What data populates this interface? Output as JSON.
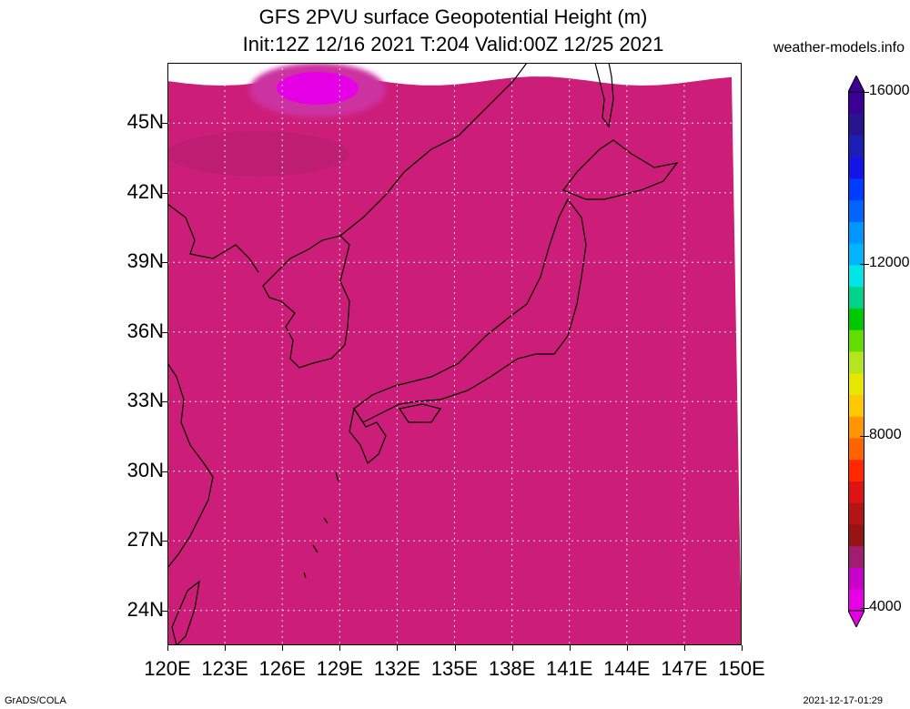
{
  "title_line1": "GFS 2PVU surface Geopotential Height (m)",
  "title_line2": "Init:12Z 12/16 2021 T:204 Valid:00Z 12/25 2021",
  "site": "weather-models.info",
  "footer_left": "GrADS/COLA",
  "footer_right": "2021-12-17-01:29",
  "map": {
    "lon_range": [
      120,
      150
    ],
    "lat_range": [
      22.5,
      47.6
    ],
    "x_labels": [
      "120E",
      "123E",
      "126E",
      "129E",
      "132E",
      "135E",
      "138E",
      "141E",
      "144E",
      "147E",
      "150E"
    ],
    "y_labels": [
      "45N",
      "42N",
      "39N",
      "36N",
      "33N",
      "30N",
      "27N",
      "24N"
    ],
    "band_colors": [
      "#cc1e78",
      "#a01818",
      "#c81e1e",
      "#e62814",
      "#ff6400",
      "#ffb400",
      "#e6dc32",
      "#a0e632",
      "#00dc00",
      "#00c8c8",
      "#00a0ff",
      "#1e3cff",
      "#1e1ec8",
      "#3c0096"
    ]
  },
  "colorbar": {
    "labels": [
      "16000",
      "12000",
      "8000",
      "4000"
    ],
    "colors": [
      "#e600e6",
      "#c800c8",
      "#a01e6e",
      "#961414",
      "#b41414",
      "#dc1414",
      "#ff2800",
      "#ff6400",
      "#ff9600",
      "#ffc800",
      "#e6e600",
      "#b4e61e",
      "#64dc00",
      "#00c800",
      "#00d28c",
      "#00e6e6",
      "#00b4ff",
      "#0096ff",
      "#0064ff",
      "#003cff",
      "#1414e6",
      "#1e1eb4",
      "#28148c",
      "#3c0096"
    ]
  }
}
